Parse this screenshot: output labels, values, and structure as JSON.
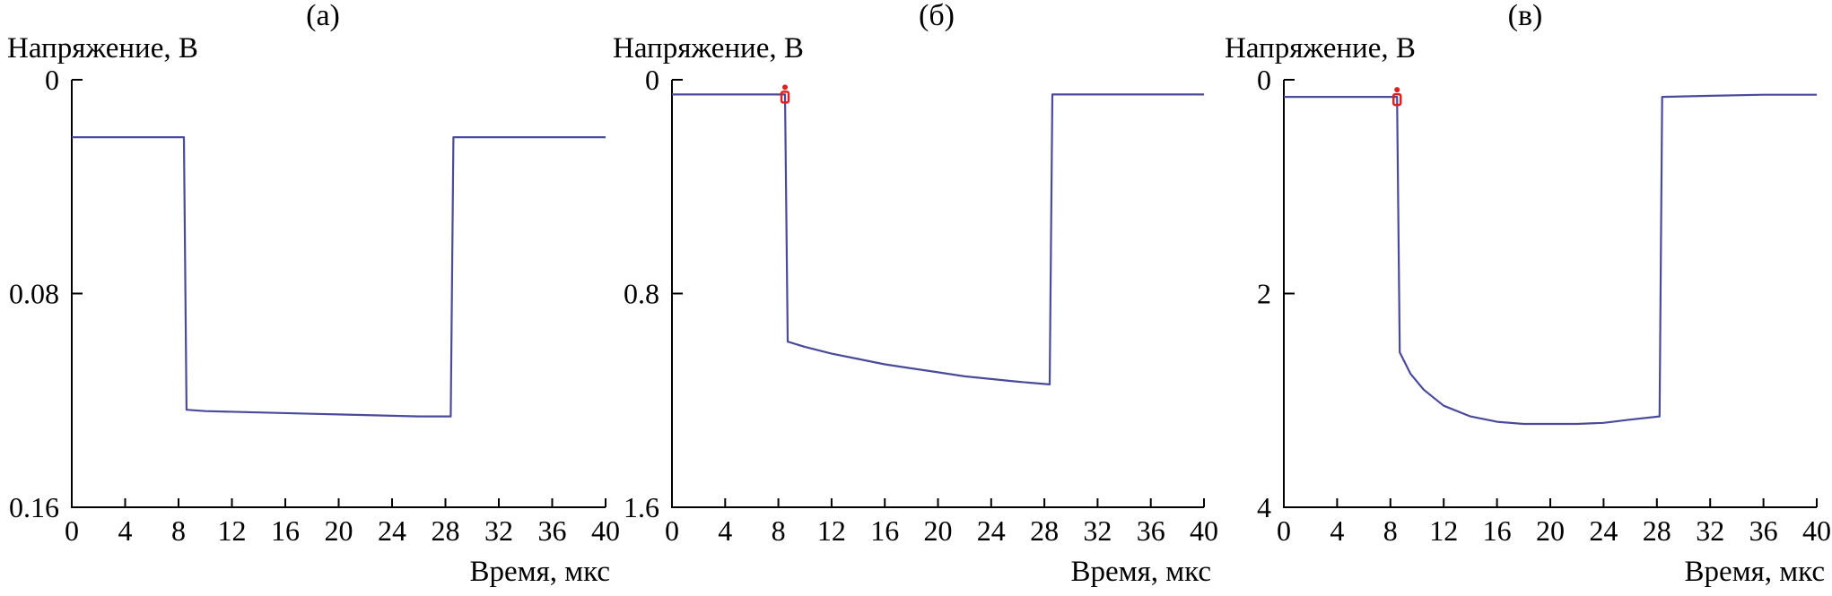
{
  "chart_data": [
    {
      "type": "line",
      "panel_label": "(а)",
      "ylabel": "Напряжение, В",
      "xlabel": "",
      "xlim": [
        0,
        40
      ],
      "ylim": [
        0,
        0.16
      ],
      "y_inverted": true,
      "x_ticks": [
        0,
        4,
        8,
        12,
        16,
        20,
        24,
        28,
        32,
        36,
        40
      ],
      "x_tick_labels": [
        "0",
        "4",
        "8",
        "12",
        "16",
        "20",
        "24",
        "28",
        "32",
        "36",
        "40"
      ],
      "y_ticks": [
        0,
        0.08,
        0.16
      ],
      "y_tick_labels": [
        "0",
        "0.08",
        "0.16"
      ],
      "grid": false,
      "series": [
        {
          "color": "#4a4a9a",
          "x": [
            0,
            8.4,
            8.6,
            10,
            14,
            18,
            22,
            26,
            28.4,
            28.6,
            32,
            36,
            40
          ],
          "y": [
            0.0215,
            0.0215,
            0.1235,
            0.124,
            0.1245,
            0.125,
            0.1255,
            0.126,
            0.126,
            0.0215,
            0.0215,
            0.0215,
            0.0215
          ]
        }
      ]
    },
    {
      "type": "line",
      "panel_label": "(б)",
      "ylabel": "Напряжение, В",
      "xlabel": "",
      "xlim": [
        0,
        40
      ],
      "ylim": [
        0,
        1.6
      ],
      "y_inverted": true,
      "x_ticks": [
        0,
        4,
        8,
        12,
        16,
        20,
        24,
        28,
        32,
        36,
        40
      ],
      "x_tick_labels": [
        "0",
        "4",
        "8",
        "12",
        "16",
        "20",
        "24",
        "28",
        "32",
        "36",
        "40"
      ],
      "y_ticks": [
        0,
        0.8,
        1.6
      ],
      "y_tick_labels": [
        "0",
        "0.8",
        "1.6"
      ],
      "grid": false,
      "series": [
        {
          "color": "#4a4a9a",
          "x": [
            0,
            8.5,
            8.7,
            10,
            12,
            14,
            16,
            18,
            20,
            22,
            24,
            26,
            28.4,
            28.6,
            32,
            36,
            40
          ],
          "y": [
            0.055,
            0.055,
            0.98,
            1.0,
            1.025,
            1.045,
            1.065,
            1.08,
            1.095,
            1.11,
            1.12,
            1.13,
            1.14,
            0.055,
            0.055,
            0.055,
            0.055
          ]
        }
      ],
      "markers": [
        {
          "x": 8.5,
          "y": 0.055,
          "color": "#e02020"
        }
      ]
    },
    {
      "type": "line",
      "panel_label": "(в)",
      "ylabel": "Напряжение, В",
      "xlabel": "Время, мкс",
      "xlim": [
        0,
        40
      ],
      "ylim": [
        0,
        4
      ],
      "y_inverted": true,
      "x_ticks": [
        0,
        4,
        8,
        12,
        16,
        20,
        24,
        28,
        32,
        36,
        40
      ],
      "x_tick_labels": [
        "0",
        "4",
        "8",
        "12",
        "16",
        "20",
        "24",
        "28",
        "32",
        "36",
        "40"
      ],
      "y_ticks": [
        0,
        2,
        4
      ],
      "y_tick_labels": [
        "0",
        "2",
        "4"
      ],
      "grid": false,
      "series": [
        {
          "color": "#4a4a9a",
          "x": [
            0,
            8.5,
            8.7,
            9.5,
            10.5,
            12,
            14,
            16,
            18,
            20,
            22,
            24,
            26,
            28.2,
            28.4,
            32,
            36,
            40
          ],
          "y": [
            0.16,
            0.16,
            2.55,
            2.75,
            2.9,
            3.05,
            3.15,
            3.2,
            3.22,
            3.22,
            3.22,
            3.21,
            3.18,
            3.15,
            0.16,
            0.15,
            0.14,
            0.14
          ]
        }
      ],
      "markers": [
        {
          "x": 8.5,
          "y": 0.16,
          "color": "#e02020"
        }
      ]
    }
  ],
  "xlabel_b": "Время, мкс",
  "xlabel_a": "Время, мкс"
}
